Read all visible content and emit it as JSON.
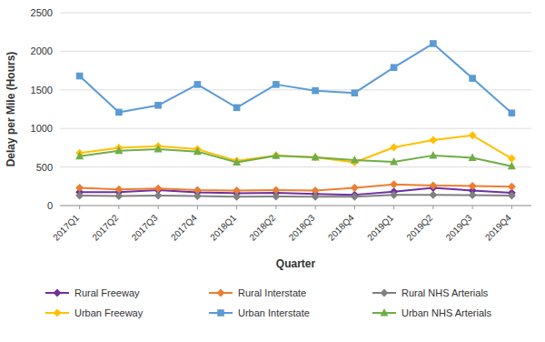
{
  "chart_data": {
    "type": "line",
    "xlabel": "Quarter",
    "ylabel": "Delay per Mile (Hours)",
    "categories": [
      "2017Q1",
      "2017Q2",
      "2017Q3",
      "2017Q4",
      "2018Q1",
      "2018Q2",
      "2018Q3",
      "2018Q4",
      "2019Q1",
      "2019Q2",
      "2019Q3",
      "2019Q4"
    ],
    "series": [
      {
        "name": "Rural Freeway",
        "color": "#7030a0",
        "marker": "diamond",
        "values": [
          175,
          175,
          200,
          170,
          160,
          165,
          150,
          140,
          180,
          230,
          195,
          165
        ]
      },
      {
        "name": "Rural Interstate",
        "color": "#ed7d31",
        "marker": "diamond",
        "values": [
          230,
          210,
          220,
          200,
          195,
          200,
          195,
          230,
          275,
          260,
          255,
          245
        ]
      },
      {
        "name": "Rural NHS Arterials",
        "color": "#808080",
        "marker": "diamond",
        "values": [
          130,
          125,
          130,
          125,
          115,
          118,
          115,
          115,
          140,
          140,
          135,
          130
        ]
      },
      {
        "name": "Urban Freeway",
        "color": "#ffc000",
        "marker": "diamond",
        "values": [
          680,
          750,
          770,
          730,
          580,
          650,
          625,
          560,
          755,
          850,
          910,
          610
        ]
      },
      {
        "name": "Urban Interstate",
        "color": "#5b9bd5",
        "marker": "square",
        "values": [
          1680,
          1210,
          1300,
          1570,
          1270,
          1570,
          1490,
          1460,
          1790,
          2100,
          1650,
          1200
        ]
      },
      {
        "name": "Urban NHS Arterials",
        "color": "#70ad47",
        "marker": "triangle",
        "values": [
          640,
          710,
          730,
          700,
          560,
          645,
          625,
          590,
          565,
          650,
          620,
          510
        ]
      }
    ],
    "ylim": [
      0,
      2500
    ],
    "yticks": [
      0,
      500,
      1000,
      1500,
      2000,
      2500
    ],
    "grid": true,
    "legend": "bottom"
  }
}
